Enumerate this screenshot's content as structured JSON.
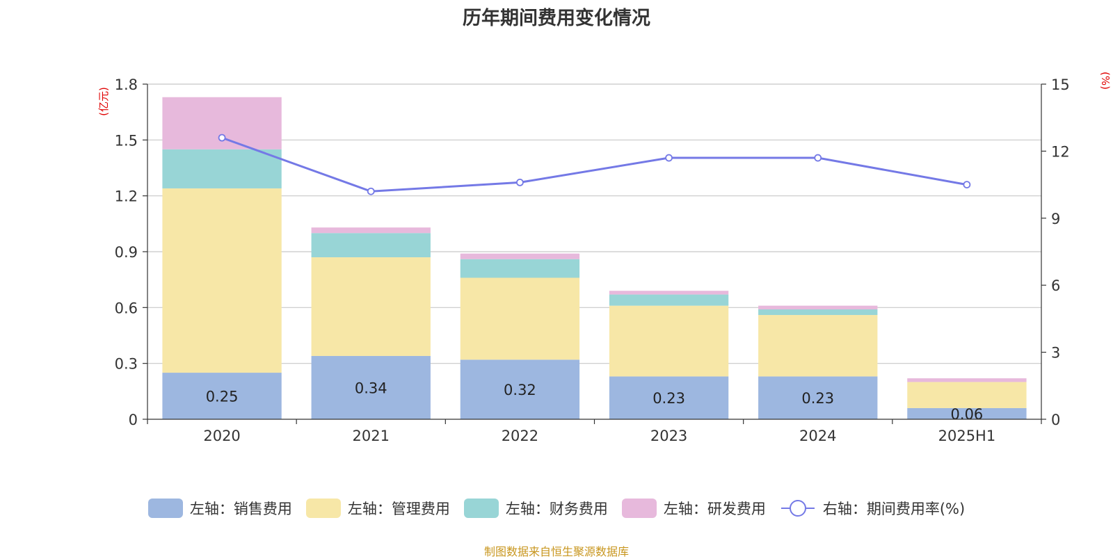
{
  "chart_data": {
    "type": "bar",
    "title": "历年期间费用变化情况",
    "categories": [
      "2020",
      "2021",
      "2022",
      "2023",
      "2024",
      "2025H1"
    ],
    "left_axis": {
      "unit": "(亿元)",
      "ylim": [
        0,
        1.8
      ],
      "ticks": [
        "0",
        "0.3",
        "0.6",
        "0.9",
        "1.2",
        "1.5",
        "1.8"
      ]
    },
    "right_axis": {
      "unit": "(%)",
      "ylim": [
        0,
        15
      ],
      "ticks": [
        "0",
        "3",
        "6",
        "9",
        "12",
        "15"
      ]
    },
    "series": [
      {
        "name": "左轴：销售费用",
        "type": "bar",
        "axis": "left",
        "color": "#9db7e0",
        "values": [
          0.25,
          0.34,
          0.32,
          0.23,
          0.23,
          0.06
        ],
        "labels": [
          "0.25",
          "0.34",
          "0.32",
          "0.23",
          "0.23",
          "0.06"
        ]
      },
      {
        "name": "左轴：管理费用",
        "type": "bar",
        "axis": "left",
        "color": "#f7e7a7",
        "values": [
          0.99,
          0.53,
          0.44,
          0.38,
          0.33,
          0.14
        ]
      },
      {
        "name": "左轴：财务费用",
        "type": "bar",
        "axis": "left",
        "color": "#98d5d6",
        "values": [
          0.21,
          0.13,
          0.1,
          0.06,
          0.03,
          0.0
        ]
      },
      {
        "name": "左轴：研发费用",
        "type": "bar",
        "axis": "left",
        "color": "#e7b9dc",
        "values": [
          0.28,
          0.03,
          0.03,
          0.02,
          0.02,
          0.02
        ]
      },
      {
        "name": "右轴：期间费用率(%)",
        "type": "line",
        "axis": "right",
        "color": "#7479e6",
        "values": [
          12.6,
          10.2,
          10.6,
          11.7,
          11.7,
          10.5
        ]
      }
    ],
    "grid": true,
    "legend_position": "bottom"
  },
  "footer": "制图数据来自恒生聚源数据库"
}
